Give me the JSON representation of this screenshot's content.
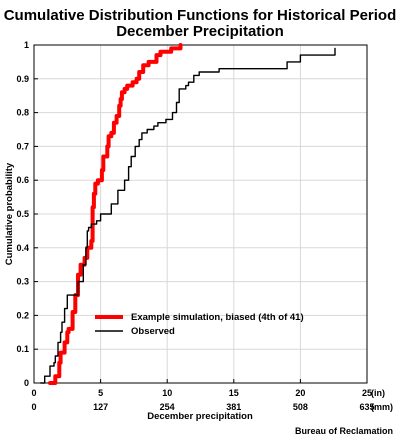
{
  "chart_data": {
    "type": "line",
    "title_line1": "Cumulative Distribution Functions for Historical Period",
    "title_line2": "December Precipitation",
    "ylabel": "Cumulative probability",
    "xlabel": "December precipitation",
    "xlim": [
      0,
      25
    ],
    "ylim": [
      0,
      1
    ],
    "grid": true,
    "x_ticks_in": [
      "0",
      "5",
      "10",
      "15",
      "20",
      "25"
    ],
    "x_unit_in": "(in)",
    "x_ticks_mm": [
      "0",
      "127",
      "254",
      "381",
      "508",
      "635"
    ],
    "x_unit_mm": "(mm)",
    "y_ticks": [
      "0",
      "0.1",
      "0.2",
      "0.3",
      "0.4",
      "0.5",
      "0.6",
      "0.7",
      "0.8",
      "0.9",
      "1"
    ],
    "legend_position": "lower-right",
    "series": [
      {
        "name": "Example simulation, biased (4th of 41)",
        "color": "#ff0000",
        "x": [
          1.2,
          1.6,
          1.9,
          2.0,
          2.3,
          2.5,
          2.6,
          2.9,
          3.1,
          3.3,
          3.5,
          3.8,
          4.0,
          4.3,
          4.4,
          4.4,
          4.5,
          4.6,
          4.6,
          4.8,
          5.1,
          5.2,
          5.5,
          5.6,
          5.8,
          6.0,
          6.2,
          6.4,
          6.5,
          6.6,
          6.8,
          7.0,
          7.4,
          7.7,
          7.9,
          8.2,
          8.6,
          9.2,
          9.5,
          10.3,
          11.0
        ],
        "y": [
          0.0,
          0.02,
          0.06,
          0.09,
          0.12,
          0.15,
          0.16,
          0.21,
          0.26,
          0.32,
          0.35,
          0.37,
          0.4,
          0.42,
          0.5,
          0.52,
          0.56,
          0.58,
          0.59,
          0.6,
          0.63,
          0.67,
          0.7,
          0.73,
          0.74,
          0.77,
          0.79,
          0.82,
          0.84,
          0.86,
          0.87,
          0.88,
          0.89,
          0.9,
          0.92,
          0.94,
          0.95,
          0.97,
          0.98,
          0.99,
          1.0
        ]
      },
      {
        "name": "Observed",
        "color": "#000000",
        "x": [
          0.5,
          0.8,
          1.2,
          1.5,
          1.6,
          1.8,
          2.0,
          2.1,
          2.3,
          2.5,
          3.3,
          3.7,
          3.9,
          4.0,
          4.1,
          4.3,
          4.7,
          5.0,
          5.8,
          6.3,
          6.8,
          7.1,
          7.3,
          7.6,
          7.9,
          8.1,
          8.5,
          9.0,
          9.3,
          9.9,
          10.4,
          10.7,
          10.9,
          11.2,
          11.4,
          11.6,
          12.0,
          12.4,
          13.9,
          19.0,
          20.0,
          22.6
        ],
        "y": [
          0.0,
          0.02,
          0.05,
          0.06,
          0.08,
          0.12,
          0.15,
          0.18,
          0.22,
          0.26,
          0.3,
          0.35,
          0.4,
          0.45,
          0.46,
          0.47,
          0.48,
          0.5,
          0.53,
          0.57,
          0.6,
          0.64,
          0.67,
          0.7,
          0.72,
          0.74,
          0.75,
          0.76,
          0.77,
          0.78,
          0.8,
          0.83,
          0.87,
          0.87,
          0.88,
          0.89,
          0.91,
          0.92,
          0.93,
          0.95,
          0.97,
          0.99
        ]
      }
    ]
  },
  "credit": "Bureau of Reclamation"
}
